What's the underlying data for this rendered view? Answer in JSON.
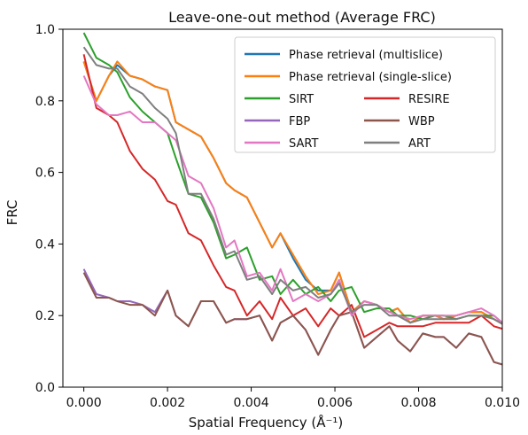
{
  "chart_data": {
    "type": "line",
    "title": "Leave-one-out method (Average FRC)",
    "xlabel": "Spatial Frequency (Å⁻¹)",
    "ylabel": "FRC",
    "xlim": [
      -0.0005,
      0.01
    ],
    "ylim": [
      0.0,
      1.0
    ],
    "xticks": [
      0.0,
      0.002,
      0.004,
      0.006,
      0.008,
      0.01
    ],
    "xtick_labels": [
      "0.000",
      "0.002",
      "0.004",
      "0.006",
      "0.008",
      "0.010"
    ],
    "yticks": [
      0.0,
      0.2,
      0.4,
      0.6,
      0.8,
      1.0
    ],
    "ytick_labels": [
      "0.0",
      "0.2",
      "0.4",
      "0.6",
      "0.8",
      "1.0"
    ],
    "grid": false,
    "legend_position": "top-right",
    "x": [
      0.0,
      0.0003,
      0.0006,
      0.0008,
      0.0011,
      0.0014,
      0.0017,
      0.002,
      0.0022,
      0.0025,
      0.0028,
      0.0031,
      0.0034,
      0.0036,
      0.0039,
      0.0042,
      0.0045,
      0.0047,
      0.005,
      0.0053,
      0.0056,
      0.0059,
      0.0061,
      0.0064,
      0.0067,
      0.007,
      0.0073,
      0.0075,
      0.0078,
      0.0081,
      0.0084,
      0.0086,
      0.0089,
      0.0092,
      0.0095,
      0.0098,
      0.0101
    ],
    "series": [
      {
        "name": "Phase retrieval  (multislice)",
        "color": "#1f77b4",
        "values": [
          0.91,
          0.8,
          0.87,
          0.9,
          0.87,
          0.86,
          0.84,
          0.83,
          0.74,
          0.72,
          0.7,
          0.64,
          0.57,
          0.55,
          0.53,
          0.46,
          0.39,
          0.43,
          0.36,
          0.3,
          0.27,
          0.27,
          0.32,
          0.21,
          0.24,
          0.23,
          0.21,
          0.22,
          0.18,
          0.2,
          0.2,
          0.19,
          0.2,
          0.21,
          0.21,
          0.19,
          0.17
        ]
      },
      {
        "name": "Phase retrieval  (single-slice)",
        "color": "#ff7f0e",
        "values": [
          0.91,
          0.8,
          0.87,
          0.91,
          0.87,
          0.86,
          0.84,
          0.83,
          0.74,
          0.72,
          0.7,
          0.64,
          0.57,
          0.55,
          0.53,
          0.46,
          0.39,
          0.43,
          0.37,
          0.31,
          0.26,
          0.27,
          0.32,
          0.21,
          0.24,
          0.23,
          0.21,
          0.22,
          0.18,
          0.2,
          0.2,
          0.19,
          0.2,
          0.21,
          0.21,
          0.19,
          0.17
        ]
      },
      {
        "name": "SIRT",
        "color": "#2ca02c",
        "values": [
          0.99,
          0.92,
          0.9,
          0.88,
          0.81,
          0.77,
          0.74,
          0.71,
          0.64,
          0.54,
          0.53,
          0.46,
          0.36,
          0.37,
          0.39,
          0.3,
          0.31,
          0.26,
          0.3,
          0.26,
          0.28,
          0.24,
          0.27,
          0.28,
          0.21,
          0.22,
          0.22,
          0.2,
          0.2,
          0.19,
          0.2,
          0.2,
          0.19,
          0.2,
          0.2,
          0.2,
          0.17
        ]
      },
      {
        "name": "RESIRE",
        "color": "#d62728",
        "values": [
          0.93,
          0.78,
          0.76,
          0.74,
          0.66,
          0.61,
          0.58,
          0.52,
          0.51,
          0.43,
          0.41,
          0.34,
          0.28,
          0.27,
          0.2,
          0.24,
          0.19,
          0.25,
          0.2,
          0.22,
          0.17,
          0.22,
          0.2,
          0.23,
          0.14,
          0.16,
          0.18,
          0.17,
          0.17,
          0.17,
          0.18,
          0.18,
          0.18,
          0.18,
          0.2,
          0.17,
          0.16
        ]
      },
      {
        "name": "FBP",
        "color": "#9467bd",
        "values": [
          0.33,
          0.26,
          0.25,
          0.24,
          0.24,
          0.23,
          0.21,
          0.27,
          0.2,
          0.17,
          0.24,
          0.24,
          0.18,
          0.19,
          0.19,
          0.2,
          0.13,
          0.18,
          0.2,
          0.16,
          0.09,
          0.16,
          0.2,
          0.21,
          0.11,
          0.14,
          0.17,
          0.13,
          0.1,
          0.15,
          0.14,
          0.14,
          0.11,
          0.15,
          0.14,
          0.07,
          0.06
        ]
      },
      {
        "name": "WBP",
        "color": "#8c564b",
        "values": [
          0.32,
          0.25,
          0.25,
          0.24,
          0.23,
          0.23,
          0.2,
          0.27,
          0.2,
          0.17,
          0.24,
          0.24,
          0.18,
          0.19,
          0.19,
          0.2,
          0.13,
          0.18,
          0.2,
          0.16,
          0.09,
          0.16,
          0.2,
          0.21,
          0.11,
          0.14,
          0.17,
          0.13,
          0.1,
          0.15,
          0.14,
          0.14,
          0.11,
          0.15,
          0.14,
          0.07,
          0.06
        ]
      },
      {
        "name": "SART",
        "color": "#e377c2",
        "values": [
          0.87,
          0.79,
          0.76,
          0.76,
          0.77,
          0.74,
          0.74,
          0.71,
          0.69,
          0.59,
          0.57,
          0.5,
          0.39,
          0.41,
          0.31,
          0.32,
          0.27,
          0.33,
          0.24,
          0.26,
          0.24,
          0.26,
          0.3,
          0.2,
          0.24,
          0.23,
          0.21,
          0.2,
          0.19,
          0.2,
          0.2,
          0.2,
          0.2,
          0.21,
          0.22,
          0.2,
          0.17
        ]
      },
      {
        "name": "ART",
        "color": "#7f7f7f",
        "values": [
          0.95,
          0.9,
          0.89,
          0.89,
          0.84,
          0.82,
          0.78,
          0.75,
          0.71,
          0.54,
          0.54,
          0.47,
          0.37,
          0.38,
          0.3,
          0.31,
          0.26,
          0.3,
          0.27,
          0.28,
          0.25,
          0.26,
          0.29,
          0.21,
          0.23,
          0.23,
          0.2,
          0.2,
          0.18,
          0.19,
          0.19,
          0.19,
          0.19,
          0.2,
          0.2,
          0.19,
          0.17
        ]
      }
    ]
  }
}
